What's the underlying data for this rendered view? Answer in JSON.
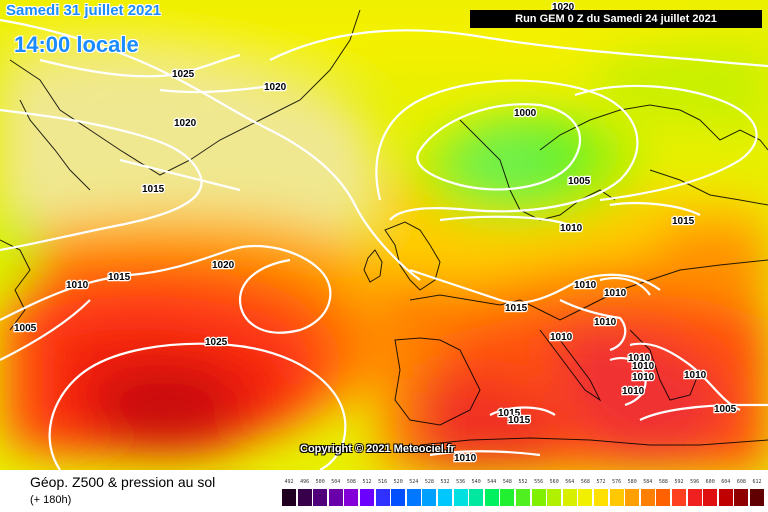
{
  "header": {
    "date": "Samedi 31 juillet 2021",
    "time": "14:00 locale",
    "run": "Run GEM 0 Z du Samedi 24 juillet 2021"
  },
  "copyright": "Copyright © 2021 Meteociel.fr",
  "footer": {
    "title": "Géop. Z500 & pression au sol",
    "subtitle": "(+ 180h)"
  },
  "legend": {
    "labels": [
      "492",
      "496",
      "500",
      "504",
      "508",
      "512",
      "516",
      "520",
      "524",
      "528",
      "532",
      "536",
      "540",
      "544",
      "548",
      "552",
      "556",
      "560",
      "564",
      "568",
      "572",
      "576",
      "580",
      "584",
      "588",
      "592",
      "596",
      "600",
      "604",
      "608",
      "612"
    ],
    "colors": [
      "#200020",
      "#38004a",
      "#50007a",
      "#6a00aa",
      "#8400d8",
      "#6c00ff",
      "#3030ff",
      "#0050ff",
      "#0078ff",
      "#00a0ff",
      "#00c8ff",
      "#00e0e0",
      "#00e8a0",
      "#00f060",
      "#20f030",
      "#50f020",
      "#80f000",
      "#b0f000",
      "#d8f000",
      "#f0f000",
      "#ffe000",
      "#ffc800",
      "#ffa000",
      "#ff8000",
      "#ff6000",
      "#ff4020",
      "#f02020",
      "#e01010",
      "#c00000",
      "#900000",
      "#600000"
    ]
  },
  "isobars": [
    {
      "value": "1025"
    },
    {
      "value": "1020"
    },
    {
      "value": "1020"
    },
    {
      "value": "1015"
    },
    {
      "value": "1015"
    },
    {
      "value": "1010"
    },
    {
      "value": "1005"
    },
    {
      "value": "1020"
    },
    {
      "value": "1025"
    },
    {
      "value": "1000"
    },
    {
      "value": "1005"
    },
    {
      "value": "1010"
    },
    {
      "value": "1015"
    },
    {
      "value": "1010"
    },
    {
      "value": "1010"
    },
    {
      "value": "1010"
    },
    {
      "value": "1010"
    },
    {
      "value": "1010"
    },
    {
      "value": "1010"
    },
    {
      "value": "1010"
    },
    {
      "value": "1010"
    },
    {
      "value": "1010"
    },
    {
      "value": "1005"
    },
    {
      "value": "1015"
    },
    {
      "value": "1015"
    },
    {
      "value": "1010"
    },
    {
      "value": "1020"
    },
    {
      "value": "1015"
    }
  ]
}
